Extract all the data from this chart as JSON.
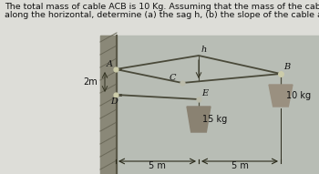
{
  "title_line1": "The total mass of cable ACB is 10 Kg. Assuming that the mass of the cable is distributed uniformly",
  "title_line2": "along the horizontal, determine (a) the sag h, (b) the slope of the cable at A.",
  "title_fontsize": 6.8,
  "bg_color": "#b8bdb5",
  "fig_bg": "#c8c9c2",
  "text_bg": "#ddddd8",
  "label_A": "A",
  "label_B": "B",
  "label_C": "C",
  "label_D": "D",
  "label_E": "E",
  "label_h": "h",
  "label_2m": "2m",
  "label_5m_left": "5 m",
  "label_5m_right": "5 m",
  "label_15kg": "15 kg",
  "label_10kg": "10 kg",
  "cable_color": "#4a4a3a",
  "wall_color": "#6a6858",
  "weight_color": "#8a8272",
  "weight_color2": "#9a9080",
  "dim_color": "#2a2a1a",
  "node_color": "#aaaaaa"
}
